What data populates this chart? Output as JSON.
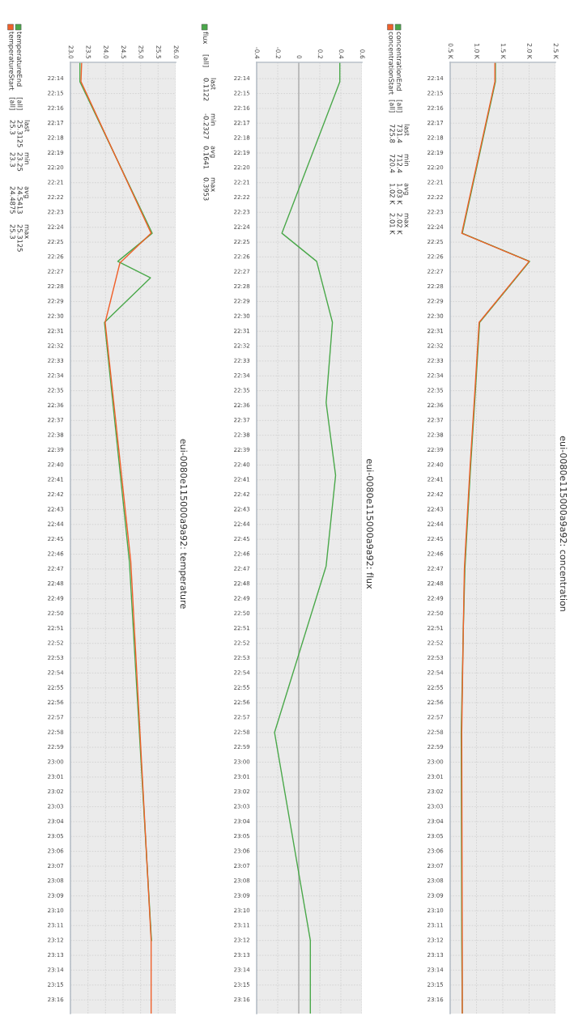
{
  "chart_data": [
    {
      "type": "line",
      "orientation": "horizontal",
      "title": "eui-0080e115000a9a92: concentration",
      "legend": "left",
      "grid": true,
      "xlim": [
        500,
        2500
      ],
      "xticks": [
        {
          "value": 500,
          "label": "0.5 K"
        },
        {
          "value": 1000,
          "label": "1.0 K"
        },
        {
          "value": 1500,
          "label": "1.5 K"
        },
        {
          "value": 2000,
          "label": "2.0 K"
        },
        {
          "value": 2500,
          "label": "2.5 K"
        }
      ],
      "ylim": [
        23.282,
        22.215
      ],
      "yticks": [
        {
          "value": 22.2333,
          "label": "22:14"
        },
        {
          "value": 22.25,
          "label": "22:15"
        },
        {
          "value": 22.2667,
          "label": "22:16"
        },
        {
          "value": 22.2833,
          "label": "22:17"
        },
        {
          "value": 22.3,
          "label": "22:18"
        },
        {
          "value": 22.3167,
          "label": "22:19"
        },
        {
          "value": 22.3333,
          "label": "22:20"
        },
        {
          "value": 22.35,
          "label": "22:21"
        },
        {
          "value": 22.3667,
          "label": "22:22"
        },
        {
          "value": 22.3833,
          "label": "22:23"
        },
        {
          "value": 22.4,
          "label": "22:24"
        },
        {
          "value": 22.4167,
          "label": "22:25"
        },
        {
          "value": 22.4333,
          "label": "22:26"
        },
        {
          "value": 22.45,
          "label": "22:27"
        },
        {
          "value": 22.4667,
          "label": "22:28"
        },
        {
          "value": 22.4833,
          "label": "22:29"
        },
        {
          "value": 22.5,
          "label": "22:30"
        },
        {
          "value": 22.5167,
          "label": "22:31"
        },
        {
          "value": 22.5333,
          "label": "22:32"
        },
        {
          "value": 22.55,
          "label": "22:33"
        },
        {
          "value": 22.5667,
          "label": "22:34"
        },
        {
          "value": 22.5833,
          "label": "22:35"
        },
        {
          "value": 22.6,
          "label": "22:36"
        },
        {
          "value": 22.6167,
          "label": "22:37"
        },
        {
          "value": 22.6333,
          "label": "22:38"
        },
        {
          "value": 22.65,
          "label": "22:39"
        },
        {
          "value": 22.6667,
          "label": "22:40"
        },
        {
          "value": 22.6833,
          "label": "22:41"
        },
        {
          "value": 22.7,
          "label": "22:42"
        },
        {
          "value": 22.7167,
          "label": "22:43"
        },
        {
          "value": 22.7333,
          "label": "22:44"
        },
        {
          "value": 22.75,
          "label": "22:45"
        },
        {
          "value": 22.7667,
          "label": "22:46"
        },
        {
          "value": 22.7833,
          "label": "22:47"
        },
        {
          "value": 22.8,
          "label": "22:48"
        },
        {
          "value": 22.8167,
          "label": "22:49"
        },
        {
          "value": 22.8333,
          "label": "22:50"
        },
        {
          "value": 22.85,
          "label": "22:51"
        },
        {
          "value": 22.8667,
          "label": "22:52"
        },
        {
          "value": 22.8833,
          "label": "22:53"
        },
        {
          "value": 22.9,
          "label": "22:54"
        },
        {
          "value": 22.9167,
          "label": "22:55"
        },
        {
          "value": 22.9333,
          "label": "22:56"
        },
        {
          "value": 22.95,
          "label": "22:57"
        },
        {
          "value": 22.9667,
          "label": "22:58"
        },
        {
          "value": 22.9833,
          "label": "22:59"
        },
        {
          "value": 23,
          "label": "23:00"
        },
        {
          "value": 23.0167,
          "label": "23:01"
        },
        {
          "value": 23.0333,
          "label": "23:02"
        },
        {
          "value": 23.05,
          "label": "23:03"
        },
        {
          "value": 23.0667,
          "label": "23:04"
        },
        {
          "value": 23.0833,
          "label": "23:05"
        },
        {
          "value": 23.1,
          "label": "23:06"
        },
        {
          "value": 23.1167,
          "label": "23:07"
        },
        {
          "value": 23.1333,
          "label": "23:08"
        },
        {
          "value": 23.15,
          "label": "23:09"
        },
        {
          "value": 23.1667,
          "label": "23:10"
        },
        {
          "value": 23.1833,
          "label": "23:11"
        },
        {
          "value": 23.2,
          "label": "23:12"
        },
        {
          "value": 23.2167,
          "label": "23:13"
        },
        {
          "value": 23.2333,
          "label": "23:14"
        },
        {
          "value": 23.25,
          "label": "23:15"
        },
        {
          "value": 23.2667,
          "label": "23:16"
        }
      ],
      "x": [
        22.215,
        22.2367,
        22.4067,
        22.4383,
        22.5067,
        22.5833,
        22.6667,
        22.75,
        22.7833,
        22.85,
        22.9667,
        23.2,
        23.2817
      ],
      "series": [
        {
          "name": "concentrationEnd",
          "color": "#4aa84a",
          "values": [
            1360,
            1360,
            730,
            2010,
            1060,
            980,
            890,
            810,
            780,
            750,
            710,
            720,
            730
          ]
        },
        {
          "name": "concentrationStart",
          "color": "#f0602a",
          "values": [
            1350,
            1350,
            720,
            2000,
            1050,
            970,
            880,
            800,
            770,
            750,
            720,
            730,
            730
          ]
        }
      ],
      "annotations": [
        "\n[all]\n[all]",
        "last\n731.4\n725.8",
        "min\n712.4\n720.4",
        "avg\n1.03 K\n1.02 K",
        "max\n2.02 K\n2.01 K"
      ]
    },
    {
      "type": "line",
      "orientation": "horizontal",
      "title": "eui-0080e115000a9a92: flux",
      "legend": "left",
      "grid": true,
      "xlim": [
        -0.4,
        0.6
      ],
      "xticks": [
        -0.4,
        -0.2,
        0,
        0.2,
        0.4,
        0.6
      ],
      "ylim": [
        23.282,
        22.215
      ],
      "yticks": [
        {
          "value": 22.2333,
          "label": "22:14"
        },
        {
          "value": 22.25,
          "label": "22:15"
        },
        {
          "value": 22.2667,
          "label": "22:16"
        },
        {
          "value": 22.2833,
          "label": "22:17"
        },
        {
          "value": 22.3,
          "label": "22:18"
        },
        {
          "value": 22.3167,
          "label": "22:19"
        },
        {
          "value": 22.3333,
          "label": "22:20"
        },
        {
          "value": 22.35,
          "label": "22:21"
        },
        {
          "value": 22.3667,
          "label": "22:22"
        },
        {
          "value": 22.3833,
          "label": "22:23"
        },
        {
          "value": 22.4,
          "label": "22:24"
        },
        {
          "value": 22.4167,
          "label": "22:25"
        },
        {
          "value": 22.4333,
          "label": "22:26"
        },
        {
          "value": 22.45,
          "label": "22:27"
        },
        {
          "value": 22.4667,
          "label": "22:28"
        },
        {
          "value": 22.4833,
          "label": "22:29"
        },
        {
          "value": 22.5,
          "label": "22:30"
        },
        {
          "value": 22.5167,
          "label": "22:31"
        },
        {
          "value": 22.5333,
          "label": "22:32"
        },
        {
          "value": 22.55,
          "label": "22:33"
        },
        {
          "value": 22.5667,
          "label": "22:34"
        },
        {
          "value": 22.5833,
          "label": "22:35"
        },
        {
          "value": 22.6,
          "label": "22:36"
        },
        {
          "value": 22.6167,
          "label": "22:37"
        },
        {
          "value": 22.6333,
          "label": "22:38"
        },
        {
          "value": 22.65,
          "label": "22:39"
        },
        {
          "value": 22.6667,
          "label": "22:40"
        },
        {
          "value": 22.6833,
          "label": "22:41"
        },
        {
          "value": 22.7,
          "label": "22:42"
        },
        {
          "value": 22.7167,
          "label": "22:43"
        },
        {
          "value": 22.7333,
          "label": "22:44"
        },
        {
          "value": 22.75,
          "label": "22:45"
        },
        {
          "value": 22.7667,
          "label": "22:46"
        },
        {
          "value": 22.7833,
          "label": "22:47"
        },
        {
          "value": 22.8,
          "label": "22:48"
        },
        {
          "value": 22.8167,
          "label": "22:49"
        },
        {
          "value": 22.8333,
          "label": "22:50"
        },
        {
          "value": 22.85,
          "label": "22:51"
        },
        {
          "value": 22.8667,
          "label": "22:52"
        },
        {
          "value": 22.8833,
          "label": "22:53"
        },
        {
          "value": 22.9,
          "label": "22:54"
        },
        {
          "value": 22.9167,
          "label": "22:55"
        },
        {
          "value": 22.9333,
          "label": "22:56"
        },
        {
          "value": 22.95,
          "label": "22:57"
        },
        {
          "value": 22.9667,
          "label": "22:58"
        },
        {
          "value": 22.9833,
          "label": "22:59"
        },
        {
          "value": 23,
          "label": "23:00"
        },
        {
          "value": 23.0167,
          "label": "23:01"
        },
        {
          "value": 23.0333,
          "label": "23:02"
        },
        {
          "value": 23.05,
          "label": "23:03"
        },
        {
          "value": 23.0667,
          "label": "23:04"
        },
        {
          "value": 23.0833,
          "label": "23:05"
        },
        {
          "value": 23.1,
          "label": "23:06"
        },
        {
          "value": 23.1167,
          "label": "23:07"
        },
        {
          "value": 23.1333,
          "label": "23:08"
        },
        {
          "value": 23.15,
          "label": "23:09"
        },
        {
          "value": 23.1667,
          "label": "23:10"
        },
        {
          "value": 23.1833,
          "label": "23:11"
        },
        {
          "value": 23.2,
          "label": "23:12"
        },
        {
          "value": 23.2167,
          "label": "23:13"
        },
        {
          "value": 23.2333,
          "label": "23:14"
        },
        {
          "value": 23.25,
          "label": "23:15"
        },
        {
          "value": 23.2667,
          "label": "23:16"
        }
      ],
      "x": [
        22.215,
        22.2367,
        22.4067,
        22.4383,
        22.5067,
        22.5967,
        22.6783,
        22.78,
        22.9667,
        23.2,
        23.2817
      ],
      "series": [
        {
          "name": "flux",
          "color": "#4aa84a",
          "values": [
            0.39,
            0.39,
            -0.16,
            0.17,
            0.32,
            0.26,
            0.35,
            0.26,
            -0.23,
            0.11,
            0.11
          ]
        }
      ],
      "ref_lines": [
        {
          "axis": "x",
          "value": 0,
          "color": "#b4b4b4"
        }
      ],
      "annotations": [
        "\n[all]",
        "last\n0.1122",
        "min\n-0.2327",
        "avg\n0.1641",
        "max\n0.3953"
      ]
    },
    {
      "type": "line",
      "orientation": "horizontal",
      "title": "eui-0080e115000a9a92: temperature",
      "legend": "left",
      "grid": true,
      "xlim": [
        23,
        26
      ],
      "xticks": [
        {
          "value": 23,
          "label": "23.0"
        },
        23.5,
        {
          "value": 24,
          "label": "24.0"
        },
        24.5,
        {
          "value": 25,
          "label": "25.0"
        },
        25.5,
        {
          "value": 26,
          "label": "26.0"
        }
      ],
      "ylim": [
        23.282,
        22.215
      ],
      "yticks": [
        {
          "value": 22.2333,
          "label": "22:14"
        },
        {
          "value": 22.25,
          "label": "22:15"
        },
        {
          "value": 22.2667,
          "label": "22:16"
        },
        {
          "value": 22.2833,
          "label": "22:17"
        },
        {
          "value": 22.3,
          "label": "22:18"
        },
        {
          "value": 22.3167,
          "label": "22:19"
        },
        {
          "value": 22.3333,
          "label": "22:20"
        },
        {
          "value": 22.35,
          "label": "22:21"
        },
        {
          "value": 22.3667,
          "label": "22:22"
        },
        {
          "value": 22.3833,
          "label": "22:23"
        },
        {
          "value": 22.4,
          "label": "22:24"
        },
        {
          "value": 22.4167,
          "label": "22:25"
        },
        {
          "value": 22.4333,
          "label": "22:26"
        },
        {
          "value": 22.45,
          "label": "22:27"
        },
        {
          "value": 22.4667,
          "label": "22:28"
        },
        {
          "value": 22.4833,
          "label": "22:29"
        },
        {
          "value": 22.5,
          "label": "22:30"
        },
        {
          "value": 22.5167,
          "label": "22:31"
        },
        {
          "value": 22.5333,
          "label": "22:32"
        },
        {
          "value": 22.55,
          "label": "22:33"
        },
        {
          "value": 22.5667,
          "label": "22:34"
        },
        {
          "value": 22.5833,
          "label": "22:35"
        },
        {
          "value": 22.6,
          "label": "22:36"
        },
        {
          "value": 22.6167,
          "label": "22:37"
        },
        {
          "value": 22.6333,
          "label": "22:38"
        },
        {
          "value": 22.65,
          "label": "22:39"
        },
        {
          "value": 22.6667,
          "label": "22:40"
        },
        {
          "value": 22.6833,
          "label": "22:41"
        },
        {
          "value": 22.7,
          "label": "22:42"
        },
        {
          "value": 22.7167,
          "label": "22:43"
        },
        {
          "value": 22.7333,
          "label": "22:44"
        },
        {
          "value": 22.75,
          "label": "22:45"
        },
        {
          "value": 22.7667,
          "label": "22:46"
        },
        {
          "value": 22.7833,
          "label": "22:47"
        },
        {
          "value": 22.8,
          "label": "22:48"
        },
        {
          "value": 22.8167,
          "label": "22:49"
        },
        {
          "value": 22.8333,
          "label": "22:50"
        },
        {
          "value": 22.85,
          "label": "22:51"
        },
        {
          "value": 22.8667,
          "label": "22:52"
        },
        {
          "value": 22.8833,
          "label": "22:53"
        },
        {
          "value": 22.9,
          "label": "22:54"
        },
        {
          "value": 22.9167,
          "label": "22:55"
        },
        {
          "value": 22.9333,
          "label": "22:56"
        },
        {
          "value": 22.95,
          "label": "22:57"
        },
        {
          "value": 22.9667,
          "label": "22:58"
        },
        {
          "value": 22.9833,
          "label": "22:59"
        },
        {
          "value": 23,
          "label": "23:00"
        },
        {
          "value": 23.0167,
          "label": "23:01"
        },
        {
          "value": 23.0333,
          "label": "23:02"
        },
        {
          "value": 23.05,
          "label": "23:03"
        },
        {
          "value": 23.0667,
          "label": "23:04"
        },
        {
          "value": 23.0833,
          "label": "23:05"
        },
        {
          "value": 23.1,
          "label": "23:06"
        },
        {
          "value": 23.1167,
          "label": "23:07"
        },
        {
          "value": 23.1333,
          "label": "23:08"
        },
        {
          "value": 23.15,
          "label": "23:09"
        },
        {
          "value": 23.1667,
          "label": "23:10"
        },
        {
          "value": 23.1833,
          "label": "23:11"
        },
        {
          "value": 23.2,
          "label": "23:12"
        },
        {
          "value": 23.2167,
          "label": "23:13"
        },
        {
          "value": 23.2333,
          "label": "23:14"
        },
        {
          "value": 23.25,
          "label": "23:15"
        },
        {
          "value": 23.2667,
          "label": "23:16"
        }
      ],
      "series": [
        {
          "name": "temperatureEnd",
          "color": "#4aa84a",
          "x": [
            22.215,
            22.2367,
            22.4067,
            22.4383,
            22.4567,
            22.5067,
            22.775,
            23.2
          ],
          "values": [
            23.27,
            23.27,
            25.33,
            24.35,
            25.28,
            23.97,
            24.68,
            25.31
          ]
        },
        {
          "name": "temperatureStart",
          "color": "#f0602a",
          "x": [
            22.215,
            22.2367,
            22.4067,
            22.44,
            22.5067,
            22.775,
            23.2,
            23.2817
          ],
          "values": [
            23.32,
            23.3,
            25.3,
            24.41,
            23.99,
            24.72,
            25.3,
            25.3
          ]
        }
      ],
      "annotations": [
        "\n[all]\n[all]",
        "last\n25.3125\n25.3",
        "min\n23.25\n23.3",
        "avg\n24.5413\n24.4875",
        "max\n25.3125\n25.3"
      ]
    }
  ]
}
